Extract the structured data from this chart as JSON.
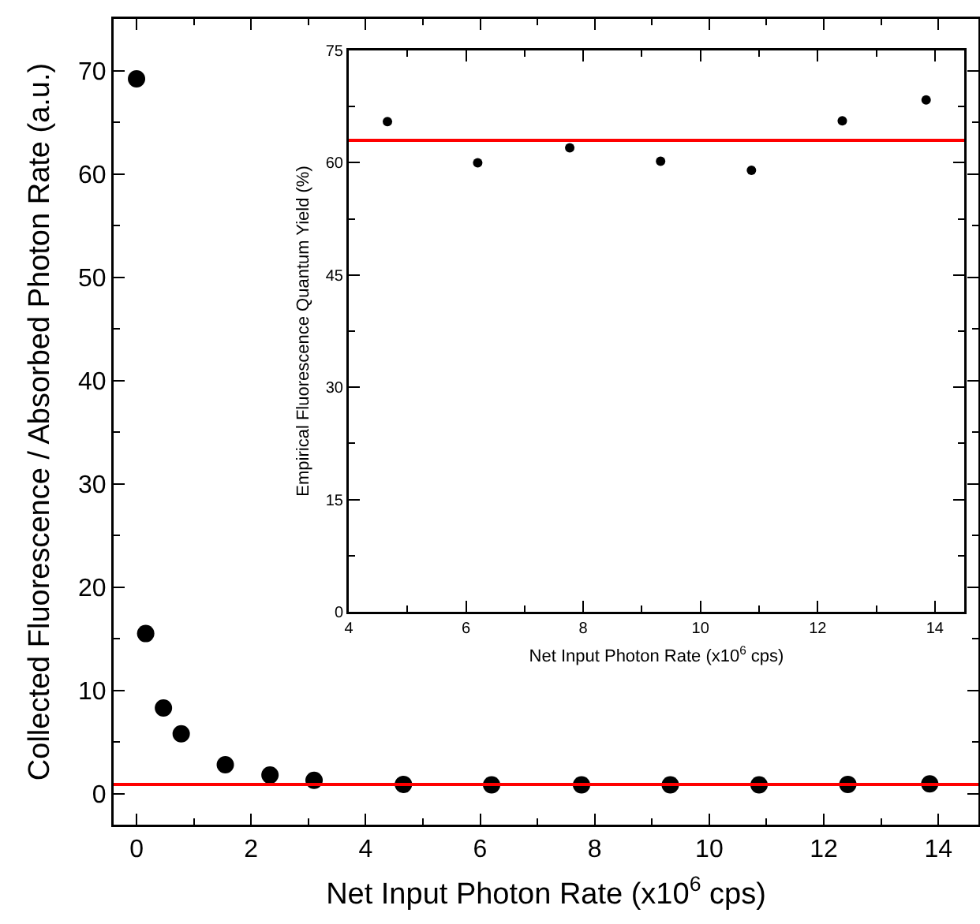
{
  "chart_data": [
    {
      "type": "scatter",
      "xlabel": "Net Input Photon Rate (x10$^{6}$ cps)",
      "ylabel": "Collected Fluorescence / Absorbed Photon Rate (a.u.)",
      "x": [
        0,
        0.16,
        0.47,
        0.78,
        1.55,
        2.33,
        3.1,
        4.66,
        6.2,
        7.77,
        9.32,
        10.87,
        12.42,
        13.85
      ],
      "series": [
        {
          "color": "#000000",
          "values": [
            69.2,
            15.5,
            8.3,
            5.8,
            2.8,
            1.8,
            1.3,
            0.9,
            0.85,
            0.85,
            0.85,
            0.85,
            0.9,
            0.95
          ]
        }
      ],
      "xlim": [
        -0.4,
        14.7
      ],
      "xticks": [
        0,
        2,
        4,
        6,
        8,
        10,
        12,
        14
      ],
      "ylim": [
        -3,
        75
      ],
      "yticks": [
        0,
        10,
        20,
        30,
        40,
        50,
        60,
        70
      ],
      "ref_lines": [
        {
          "axis": "y",
          "value": 0.9,
          "color": "#ff0000"
        }
      ],
      "grid": false,
      "marker": "circle"
    },
    {
      "type": "scatter",
      "xlabel": "Net Input Photon Rate (x10$^{6}$ cps)",
      "ylabel": "Empirical Fluorescence Quantum Yield (%)",
      "x": [
        4.66,
        6.2,
        7.77,
        9.32,
        10.87,
        12.42,
        13.85
      ],
      "series": [
        {
          "color": "#000000",
          "values": [
            65.5,
            60,
            62,
            60.2,
            59,
            65.6,
            68.4
          ]
        }
      ],
      "xlim": [
        4,
        14.5
      ],
      "xticks": [
        4,
        6,
        8,
        10,
        12,
        14
      ],
      "ylim": [
        0,
        75
      ],
      "yticks": [
        0,
        15,
        30,
        45,
        60,
        75
      ],
      "ref_lines": [
        {
          "axis": "y",
          "value": 63,
          "color": "#ff0000"
        }
      ],
      "grid": false,
      "marker": "circle"
    }
  ]
}
